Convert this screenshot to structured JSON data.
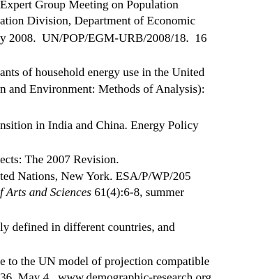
{
  "reference_lines": [
    {
      "text": "Expert Group Meeting on Population"
    },
    {
      "text": "ation Division, Department of Economic"
    },
    {
      "text": "y 2008.  UN/POP/EGM-URB/2008/18.  16"
    },
    {
      "text": "ants of household energy use in the United"
    },
    {
      "text": "n and Environment: Methods of Analysis):"
    },
    {
      "text": "nsition in India and China. Energy Policy"
    },
    {
      "text": "ects: The 2007 Revision."
    },
    {
      "text": "ted Nations, New York. ESA/P/WP/205"
    },
    {
      "text_italic": "f Arts and Sciences",
      "text_after": " 61(4):6-8, summer"
    },
    {
      "text": "ly defined in different countries, and"
    },
    {
      "text": "e to the UN model of projection compatible"
    },
    {
      "text": "36, May 4.  www.demographic-research.org"
    }
  ]
}
